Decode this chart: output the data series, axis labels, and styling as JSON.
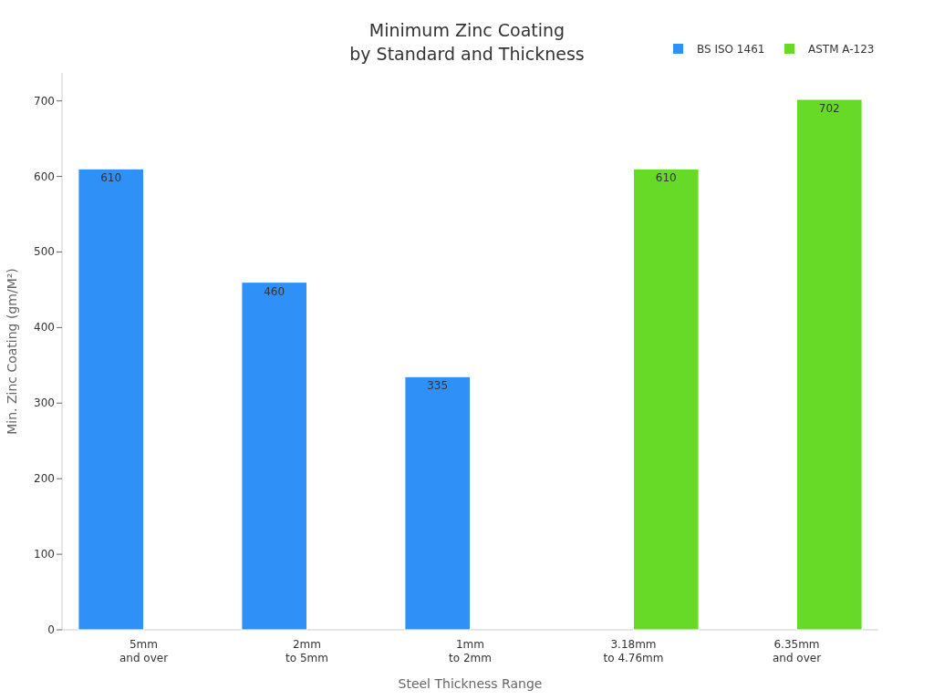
{
  "chart_data": {
    "type": "bar",
    "title": "Minimum Zinc Coating\nby Standard and Thickness",
    "xlabel": "Steel Thickness Range",
    "ylabel": "Min. Zinc Coating (gm/M²)",
    "categories": [
      "5mm\nand over",
      "2mm\nto 5mm",
      "1mm\nto 2mm",
      "3.18mm\nto 4.76mm",
      "6.35mm\nand over"
    ],
    "series": [
      {
        "name": "BS ISO 1461",
        "color": "#2f91f7",
        "values": [
          610,
          460,
          335,
          null,
          null
        ]
      },
      {
        "name": "ASTM A-123",
        "color": "#66da26",
        "values": [
          null,
          null,
          null,
          610,
          702
        ]
      }
    ],
    "ylim": [
      0,
      737
    ],
    "yticks": [
      0,
      100,
      200,
      300,
      400,
      500,
      600,
      700
    ],
    "grid": false,
    "legend": "top right",
    "data_labels": true
  }
}
